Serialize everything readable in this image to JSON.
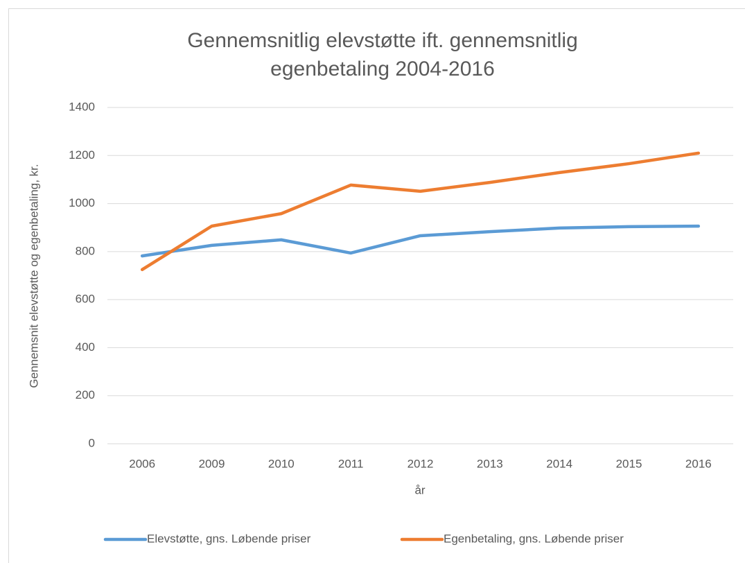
{
  "chart_data": {
    "type": "line",
    "title": [
      "Gennemsnitlig elevstøtte ift. gennemsnitlig",
      "egenbetaling 2004-2016"
    ],
    "x_label": "år",
    "y_label": "Gennemsnit elevstøtte og egenbetaling, kr.",
    "categories": [
      "2006",
      "2009",
      "2010",
      "2011",
      "2012",
      "2013",
      "2014",
      "2015",
      "2016"
    ],
    "series": [
      {
        "name": "Elevstøtte, gns. Løbende priser",
        "color": "#5b9bd5",
        "values": [
          782,
          826,
          849,
          794,
          866,
          883,
          898,
          904,
          906
        ]
      },
      {
        "name": "Egenbetaling, gns. Løbende priser",
        "color": "#ed7d31",
        "values": [
          725,
          906,
          958,
          1077,
          1051,
          1088,
          1129,
          1166,
          1210
        ]
      }
    ],
    "ylim": [
      0,
      1400
    ],
    "yticks": [
      0,
      200,
      400,
      600,
      800,
      1000,
      1200,
      1400
    ],
    "grid": true,
    "legend": "bottom"
  }
}
